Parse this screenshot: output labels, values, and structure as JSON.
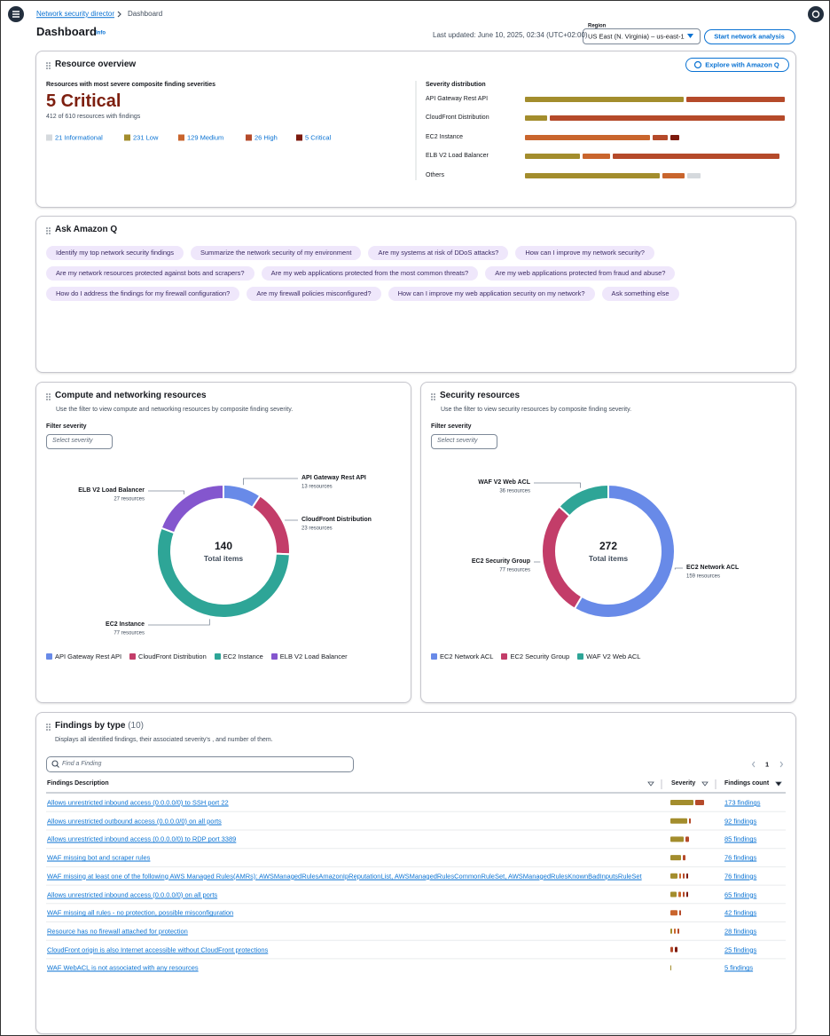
{
  "header": {
    "breadcrumb": [
      "Network security director",
      "Dashboard"
    ],
    "title": "Dashboard",
    "info": "Info",
    "last_updated": "Last updated: June 10, 2025, 02:34 (UTC+02:00)",
    "region_label": "Region",
    "region": "US East (N. Virginia) – us-east-1",
    "button": "Start network analysis"
  },
  "resource_overview": {
    "title": "Resource overview",
    "button": "Explore with Amazon Q",
    "subtitle": "Resources with most severe composite finding severities",
    "headline": "5 Critical",
    "summary": "412 of 610 resources with findings",
    "legend": [
      {
        "label": "21 Informational",
        "color": "#d5d9dd"
      },
      {
        "label": "231 Low",
        "color": "#a38d2d"
      },
      {
        "label": "129 Medium",
        "color": "#c9652d"
      },
      {
        "label": "26 High",
        "color": "#b54a2a"
      },
      {
        "label": "5 Critical",
        "color": "#7d1a0d"
      }
    ],
    "distribution": {
      "title": "Severity distribution",
      "rows": [
        {
          "label": "API Gateway Rest API",
          "segments": [
            {
              "color": "#a38d2d",
              "value": 179
            },
            {
              "color": "#b54a2a",
              "value": 111
            }
          ]
        },
        {
          "label": "CloudFront Distribution",
          "segments": [
            {
              "color": "#a38d2d",
              "value": 25
            },
            {
              "color": "#b54a2a",
              "value": 265
            }
          ]
        },
        {
          "label": "EC2 Instance",
          "segments": [
            {
              "color": "#c9652d",
              "value": 141
            },
            {
              "color": "#b54a2a",
              "value": 17
            },
            {
              "color": "#7d1a0d",
              "value": 10
            }
          ]
        },
        {
          "label": "ELB V2 Load Balancer",
          "segments": [
            {
              "color": "#a38d2d",
              "value": 62
            },
            {
              "color": "#c9652d",
              "value": 31
            },
            {
              "color": "#b54a2a",
              "value": 188
            }
          ]
        },
        {
          "label": "Others",
          "segments": [
            {
              "color": "#a38d2d",
              "value": 152
            },
            {
              "color": "#c9652d",
              "value": 25
            },
            {
              "color": "#d5d9dd",
              "value": 15
            }
          ]
        }
      ]
    }
  },
  "ask_q": {
    "title": "Ask Amazon Q",
    "prompts": [
      [
        "Identify my top network security findings",
        "Summarize the network security of my environment",
        "Are my systems at risk of DDoS attacks?",
        "How can I improve my network security?"
      ],
      [
        "Are my network resources protected against bots and scrapers?",
        "Are my web applications protected from the most common threats?",
        "Are my web applications protected from fraud and abuse?"
      ],
      [
        "How do I address the findings for my firewall configuration?",
        "Are my firewall policies misconfigured?",
        "How can I improve my web application security on my network?",
        "Ask something else"
      ]
    ]
  },
  "chart_data": [
    {
      "type": "donut",
      "title": "Compute and networking resources",
      "description": "Use the filter to view compute and networking resources by composite finding severity.",
      "filter_label": "Filter severity",
      "filter_placeholder": "Select severity",
      "total": 140,
      "total_label": "Total items",
      "categories": [
        "API Gateway Rest API",
        "CloudFront Distribution",
        "EC2 Instance",
        "ELB V2 Load Balancer"
      ],
      "values": [
        13,
        23,
        77,
        27
      ],
      "value_labels": [
        "13 resources",
        "23 resources",
        "77 resources",
        "27 resources"
      ],
      "colors": [
        "#688ae8",
        "#c33d69",
        "#2ea597",
        "#8456ce"
      ]
    },
    {
      "type": "donut",
      "title": "Security resources",
      "description": "Use the filter to view security resources by composite finding severity.",
      "filter_label": "Filter severity",
      "filter_placeholder": "Select severity",
      "total": 272,
      "total_label": "Total items",
      "categories": [
        "EC2 Network ACL",
        "EC2 Security Group",
        "WAF V2 Web ACL"
      ],
      "values": [
        159,
        77,
        36
      ],
      "value_labels": [
        "159 resources",
        "77 resources",
        "36 resources"
      ],
      "colors": [
        "#688ae8",
        "#c33d69",
        "#2ea597"
      ]
    }
  ],
  "findings": {
    "title": "Findings by type",
    "count": "(10)",
    "description": "Displays all identified findings, their associated severity's , and number of them.",
    "search_placeholder": "Find a Finding",
    "page": 1,
    "columns": [
      "Findings Description",
      "Severity",
      "Findings count"
    ],
    "rows": [
      {
        "description": "Allows unrestricted inbound access (0.0.0.0/0) to SSH port 22",
        "severity": [
          {
            "color": "#a38d2d",
            "value": 26
          },
          {
            "color": "#b54a2a",
            "value": 10
          }
        ],
        "count_label": "173 findings"
      },
      {
        "description": "Allows unrestricted outbound access (0.0.0.0/0) on all ports",
        "severity": [
          {
            "color": "#a38d2d",
            "value": 19
          },
          {
            "color": "#b54a2a",
            "value": 2
          }
        ],
        "count_label": "92 findings"
      },
      {
        "description": "Allows unrestricted inbound access (0.0.0.0/0) to RDP port 3389",
        "severity": [
          {
            "color": "#a38d2d",
            "value": 15
          },
          {
            "color": "#b54a2a",
            "value": 4
          }
        ],
        "count_label": "85 findings"
      },
      {
        "description": "WAF missing bot and scraper rules",
        "severity": [
          {
            "color": "#a38d2d",
            "value": 12
          },
          {
            "color": "#b54a2a",
            "value": 3
          }
        ],
        "count_label": "76 findings"
      },
      {
        "description": "WAF missing at least one of the following AWS Managed Rules(AMRs): AWSManagedRulesAmazonIpReputationList, AWSManagedRulesCommonRuleSet, AWSManagedRulesKnownBadInputsRuleSet",
        "severity": [
          {
            "color": "#a38d2d",
            "value": 8
          },
          {
            "color": "#c9652d",
            "value": 2
          },
          {
            "color": "#b54a2a",
            "value": 2
          },
          {
            "color": "#7d1a0d",
            "value": 2
          }
        ],
        "count_label": "76 findings"
      },
      {
        "description": "Allows unrestricted inbound access (0.0.0.0/0) on all ports",
        "severity": [
          {
            "color": "#a38d2d",
            "value": 7
          },
          {
            "color": "#c9652d",
            "value": 3
          },
          {
            "color": "#b54a2a",
            "value": 2
          },
          {
            "color": "#7d1a0d",
            "value": 2
          }
        ],
        "count_label": "65 findings"
      },
      {
        "description": "WAF missing all rules - no protection, possible misconfiguration",
        "severity": [
          {
            "color": "#c9652d",
            "value": 8
          },
          {
            "color": "#b54a2a",
            "value": 2
          }
        ],
        "count_label": "42 findings"
      },
      {
        "description": "Resource has no firewall attached for protection",
        "severity": [
          {
            "color": "#a38d2d",
            "value": 2
          },
          {
            "color": "#c9652d",
            "value": 2
          },
          {
            "color": "#b54a2a",
            "value": 2
          }
        ],
        "count_label": "28 findings"
      },
      {
        "description": "CloudFront origin is also Internet accessible without CloudFront protections",
        "severity": [
          {
            "color": "#b54a2a",
            "value": 3
          },
          {
            "color": "#7d1a0d",
            "value": 3
          }
        ],
        "count_label": "25 findings"
      },
      {
        "description": "WAF WebACL is not associated with any resources",
        "severity": [
          {
            "color": "#a38d2d",
            "value": 1
          }
        ],
        "count_label": "5 findings"
      }
    ]
  }
}
